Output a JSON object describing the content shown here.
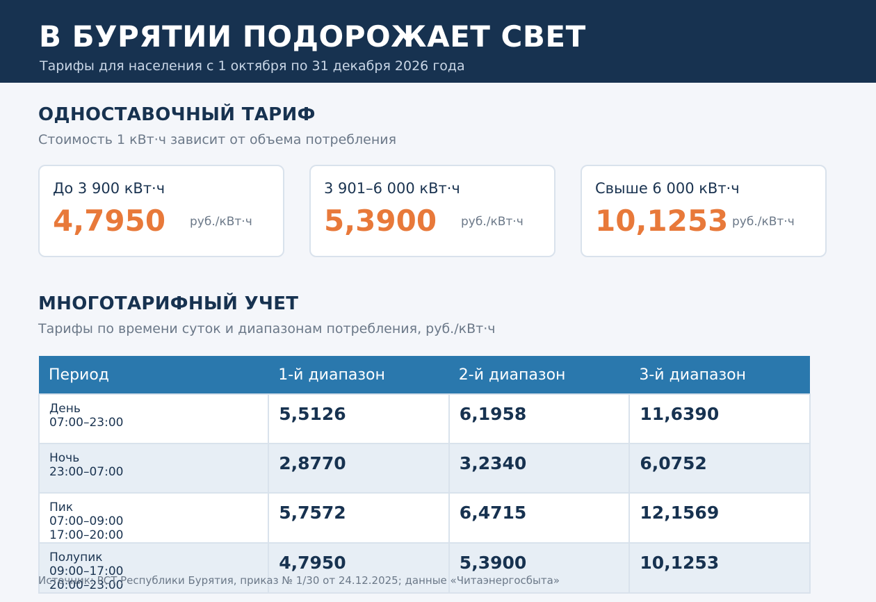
{
  "header": {
    "title": "В БУРЯТИИ ПОДОРОЖАЕТ СВЕТ",
    "subtitle": "Тарифы для населения с 1 октября по 31 декабря 2026 года"
  },
  "single": {
    "title": "ОДНОСТАВОЧНЫЙ ТАРИФ",
    "subtitle": "Стоимость 1 кВт·ч зависит от объема потребления",
    "cards": [
      {
        "range": "До 3 900 кВт·ч",
        "price": "4,7950",
        "unit": "руб./кВт·ч"
      },
      {
        "range": "3 901–6 000 кВт·ч",
        "price": "5,3900",
        "unit": "руб./кВт·ч"
      },
      {
        "range": "Свыше 6 000 кВт·ч",
        "price": "10,1253",
        "unit": "руб./кВт·ч"
      }
    ]
  },
  "multi": {
    "title": "МНОГОТАРИФНЫЙ УЧЕТ",
    "subtitle": "Тарифы по времени суток и диапазонам потребления, руб./кВт·ч",
    "columns": [
      "Период",
      "1-й диапазон",
      "2-й диапазон",
      "3-й диапазон"
    ],
    "rows": [
      {
        "name": "День",
        "times": [
          "07:00–23:00"
        ],
        "values": [
          "5,5126",
          "6,1958",
          "11,6390"
        ]
      },
      {
        "name": "Ночь",
        "times": [
          "23:00–07:00"
        ],
        "values": [
          "2,8770",
          "3,2340",
          "6,0752"
        ]
      },
      {
        "name": "Пик",
        "times": [
          "07:00–09:00",
          "17:00–20:00"
        ],
        "values": [
          "5,7572",
          "6,4715",
          "12,1569"
        ]
      },
      {
        "name": "Полупик",
        "times": [
          "09:00–17:00",
          "20:00–23:00"
        ],
        "values": [
          "4,7950",
          "5,3900",
          "10,1253"
        ]
      }
    ]
  },
  "source": "Источник: РСТ Республики Бурятия, приказ № 1/30 от 24.12.2025; данные «Читаэнергосбыта»",
  "colors": {
    "header_bg": "#173250",
    "accent_price": "#e8793a",
    "table_header": "#2a78ad",
    "row_alt": "#e7eef5"
  }
}
